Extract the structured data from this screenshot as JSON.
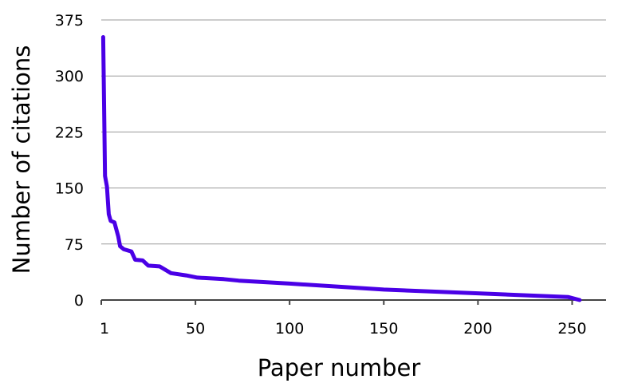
{
  "chart_data": {
    "type": "line",
    "title": "",
    "xlabel": "Paper number",
    "ylabel": "Number of citations",
    "xlim": [
      0,
      268
    ],
    "ylim": [
      0,
      375
    ],
    "x_ticks": [
      1,
      50,
      100,
      150,
      200,
      250
    ],
    "x_tick_labels": [
      "1",
      "50",
      "100",
      "150",
      "200",
      "250"
    ],
    "y_ticks": [
      0,
      75,
      150,
      225,
      300,
      375
    ],
    "y_tick_labels": [
      "0",
      "75",
      "150",
      "225",
      "300",
      "375"
    ],
    "grid": "horizontal",
    "line_color": "#4a00e6",
    "series": [
      {
        "x": [
          1,
          2,
          3,
          4,
          5,
          7,
          9,
          10,
          12,
          16,
          18,
          22,
          25,
          31,
          37,
          45,
          51,
          65,
          73,
          100,
          150,
          200,
          248,
          254
        ],
        "y": [
          352,
          166,
          152,
          115,
          106,
          104,
          85,
          72,
          68,
          65,
          54,
          53,
          46,
          45,
          36,
          33,
          30,
          28,
          26,
          22,
          14,
          9,
          4,
          0
        ]
      }
    ]
  }
}
